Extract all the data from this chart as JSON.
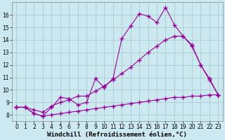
{
  "xlabel": "Windchill (Refroidissement éolien,°C)",
  "bg_color": "#cce8f0",
  "grid_color": "#aacccc",
  "line_color": "#990099",
  "xlim_min": -0.5,
  "xlim_max": 23.5,
  "ylim_min": 7.5,
  "ylim_max": 17.0,
  "yticks": [
    8,
    9,
    10,
    11,
    12,
    13,
    14,
    15,
    16
  ],
  "xticks": [
    0,
    1,
    2,
    3,
    4,
    5,
    6,
    7,
    8,
    9,
    10,
    11,
    12,
    13,
    14,
    15,
    16,
    17,
    18,
    19,
    20,
    21,
    22,
    23
  ],
  "line1_x": [
    0,
    1,
    2,
    3,
    4,
    5,
    6,
    7,
    8,
    9,
    10,
    11,
    12,
    13,
    14,
    15,
    16,
    17,
    18,
    19,
    20,
    21,
    22,
    23
  ],
  "line1_y": [
    8.6,
    8.6,
    8.1,
    7.9,
    8.6,
    9.4,
    9.3,
    8.8,
    9.0,
    10.9,
    10.2,
    10.9,
    14.1,
    15.1,
    16.1,
    15.9,
    15.4,
    16.6,
    15.2,
    14.3,
    13.5,
    12.0,
    10.8,
    9.6
  ],
  "line2_x": [
    0,
    1,
    2,
    3,
    4,
    5,
    6,
    7,
    8,
    9,
    10,
    11,
    12,
    13,
    14,
    15,
    16,
    17,
    18,
    19,
    20,
    21,
    22,
    23
  ],
  "line2_y": [
    8.6,
    8.6,
    8.4,
    8.2,
    8.7,
    9.0,
    9.2,
    9.5,
    9.5,
    9.9,
    10.3,
    10.8,
    11.3,
    11.8,
    12.4,
    13.0,
    13.5,
    14.0,
    14.3,
    14.3,
    13.6,
    12.0,
    10.9,
    9.6
  ],
  "line3_x": [
    0,
    1,
    2,
    3,
    4,
    5,
    6,
    7,
    8,
    9,
    10,
    11,
    12,
    13,
    14,
    15,
    16,
    17,
    18,
    19,
    20,
    21,
    22,
    23
  ],
  "line3_y": [
    8.6,
    8.6,
    8.1,
    7.9,
    8.0,
    8.1,
    8.2,
    8.3,
    8.4,
    8.5,
    8.6,
    8.7,
    8.8,
    8.9,
    9.0,
    9.1,
    9.2,
    9.3,
    9.4,
    9.4,
    9.5,
    9.5,
    9.6,
    9.6
  ],
  "marker": "+",
  "markersize": 4,
  "markeredgewidth": 1.0,
  "linewidth": 0.8,
  "xlabel_fontsize": 6.5,
  "tick_fontsize": 5.5
}
